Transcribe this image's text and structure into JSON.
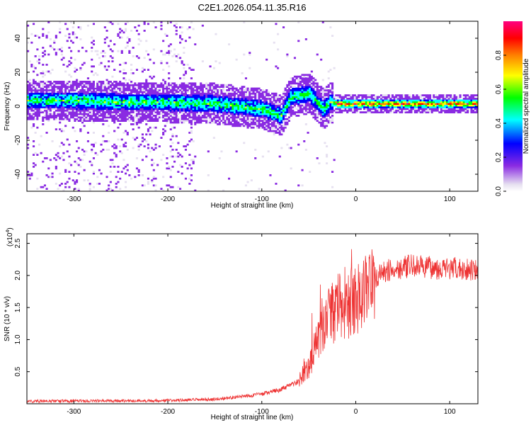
{
  "title": "C2E1.2026.054.11.35.R16",
  "chart_data": [
    {
      "type": "heatmap",
      "title": "C2E1.2026.054.11.35.R16",
      "xlabel": "Height of straight line (km)",
      "ylabel": "Frequency (Hz)",
      "xlim": [
        -350,
        130
      ],
      "ylim": [
        -50,
        50
      ],
      "x_ticks": [
        -300,
        -200,
        -100,
        0,
        100
      ],
      "x_tick_labels": [
        "-300",
        "-200",
        "-100",
        "0",
        "100"
      ],
      "y_ticks": [
        -40,
        -20,
        0,
        20,
        40
      ],
      "y_tick_labels": [
        "-40",
        "-20",
        "0",
        "20",
        "40"
      ],
      "ridge": {
        "x": [
          -350,
          -300,
          -250,
          -200,
          -150,
          -100,
          -80,
          -70,
          -50,
          -35,
          -28,
          -20,
          0,
          50,
          100,
          130
        ],
        "freq_hz": [
          3,
          3,
          2,
          2,
          1,
          -2,
          -6,
          5,
          7,
          -2,
          2,
          1,
          1,
          1,
          1,
          1
        ]
      },
      "colorbar": {
        "label": "Normalized spectral amplitude",
        "range": [
          0,
          1
        ],
        "ticks": [
          0.0,
          0.2,
          0.4,
          0.6,
          0.8
        ],
        "tick_labels": [
          "0.0",
          "0.2",
          "0.4",
          "0.6",
          "0.8"
        ],
        "colors": [
          "#e6e0f0",
          "#8a2be2",
          "#0000ff",
          "#00ffff",
          "#00ff00",
          "#ffff00",
          "#ff8000",
          "#ff0000",
          "#ff0080"
        ]
      }
    },
    {
      "type": "line",
      "xlabel": "Height of straight line (km)",
      "ylabel": "SNR (10 * v/v)",
      "y_scale_label": "(x10",
      "y_scale_exponent": "4",
      "y_scale_close": ")",
      "xlim": [
        -350,
        130
      ],
      "ylim": [
        0,
        2.65
      ],
      "x_ticks": [
        -300,
        -200,
        -100,
        0,
        100
      ],
      "x_tick_labels": [
        "-300",
        "-200",
        "-100",
        "0",
        "100"
      ],
      "y_ticks": [
        0.5,
        1.0,
        1.5,
        2.0,
        2.5
      ],
      "y_tick_labels": [
        "0.5",
        "1.0",
        "1.5",
        "2.0",
        "2.5"
      ],
      "color": "#ee3333",
      "envelope": {
        "x": [
          -350,
          -200,
          -150,
          -100,
          -80,
          -60,
          -50,
          -40,
          -30,
          -20,
          -10,
          0,
          10,
          20,
          30,
          40,
          60,
          80,
          100,
          130
        ],
        "y": [
          0.04,
          0.05,
          0.07,
          0.15,
          0.22,
          0.35,
          0.6,
          1.0,
          1.3,
          1.5,
          1.55,
          1.6,
          1.8,
          1.95,
          2.05,
          2.1,
          2.15,
          2.12,
          2.1,
          2.1
        ]
      }
    }
  ]
}
